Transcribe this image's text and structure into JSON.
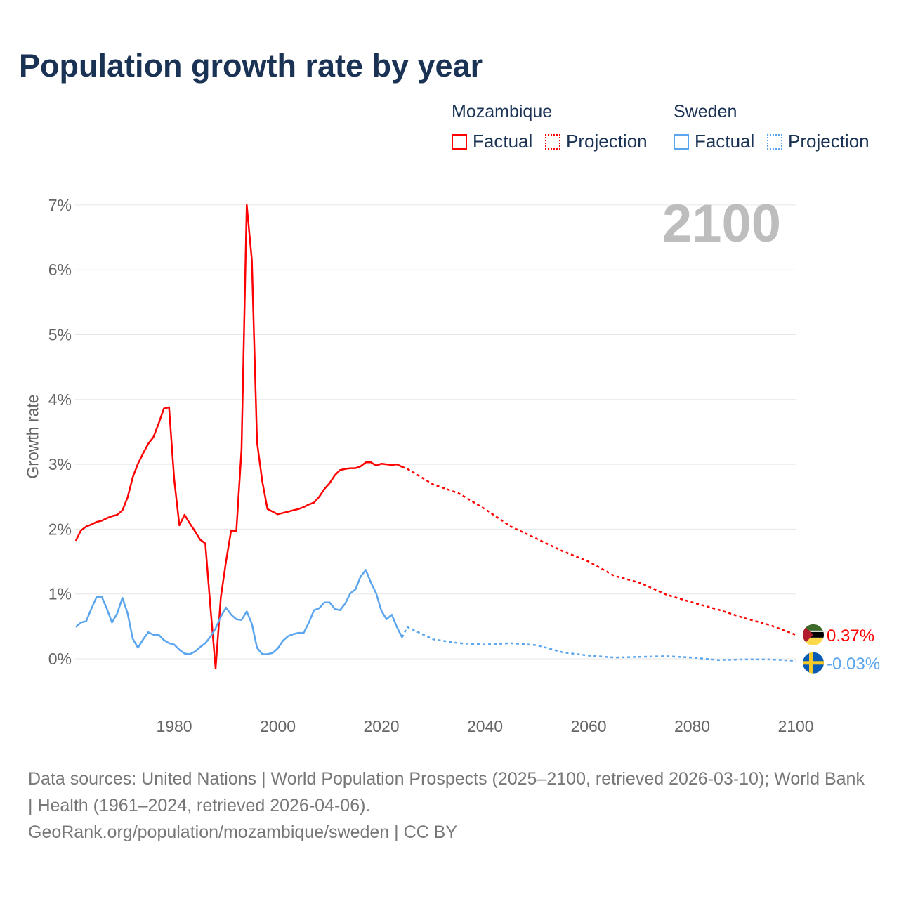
{
  "title": "Population growth rate by year",
  "current_year": "2100",
  "legend": {
    "groups": [
      {
        "name": "Mozambique",
        "color": "#ff0000",
        "factual": "Factual",
        "projection": "Projection"
      },
      {
        "name": "Sweden",
        "color": "#5aa5ee",
        "factual": "Factual",
        "projection": "Projection"
      }
    ]
  },
  "chart_data": {
    "type": "line",
    "title": "Population growth rate by year",
    "xlabel": "",
    "ylabel": "Growth rate",
    "xlim": [
      1961,
      2100
    ],
    "ylim": [
      -0.5,
      7.5
    ],
    "x_ticks": [
      1980,
      2000,
      2020,
      2040,
      2060,
      2080,
      2100
    ],
    "y_ticks": [
      0,
      1,
      2,
      3,
      4,
      5,
      6,
      7
    ],
    "y_tick_labels": [
      "0%",
      "1%",
      "2%",
      "3%",
      "4%",
      "5%",
      "6%",
      "7%"
    ],
    "grid": true,
    "series": [
      {
        "name": "Mozambique",
        "color": "#ff0000",
        "factual": {
          "start_year": 1961,
          "values": [
            1.82,
            1.98,
            2.04,
            2.07,
            2.11,
            2.13,
            2.17,
            2.2,
            2.22,
            2.29,
            2.49,
            2.8,
            3.01,
            3.17,
            3.32,
            3.42,
            3.63,
            3.86,
            3.88,
            2.77,
            2.06,
            2.22,
            2.09,
            1.97,
            1.84,
            1.78,
            0.8,
            -0.15,
            0.95,
            1.5,
            1.98,
            1.97,
            3.23,
            7.0,
            6.15,
            3.34,
            2.74,
            2.31,
            2.27,
            2.23,
            2.25,
            2.27,
            2.29,
            2.31,
            2.34,
            2.38,
            2.41,
            2.5,
            2.62,
            2.71,
            2.83,
            2.91,
            2.93,
            2.94,
            2.94,
            2.97,
            3.03,
            3.03,
            2.98,
            3.01,
            3.0,
            2.99,
            3.0,
            2.96
          ]
        },
        "projection": {
          "years": [
            2024,
            2025,
            2030,
            2035,
            2040,
            2045,
            2050,
            2055,
            2060,
            2065,
            2070,
            2075,
            2080,
            2085,
            2090,
            2095,
            2100
          ],
          "values": [
            2.96,
            2.93,
            2.69,
            2.55,
            2.31,
            2.04,
            1.85,
            1.66,
            1.5,
            1.28,
            1.17,
            0.99,
            0.87,
            0.76,
            0.63,
            0.52,
            0.37
          ]
        },
        "end_label": "0.37%"
      },
      {
        "name": "Sweden",
        "color": "#5aa5ee",
        "factual": {
          "start_year": 1961,
          "values": [
            0.49,
            0.56,
            0.58,
            0.77,
            0.95,
            0.96,
            0.77,
            0.56,
            0.7,
            0.94,
            0.7,
            0.31,
            0.17,
            0.3,
            0.41,
            0.37,
            0.37,
            0.29,
            0.24,
            0.22,
            0.14,
            0.08,
            0.07,
            0.11,
            0.18,
            0.24,
            0.34,
            0.47,
            0.65,
            0.79,
            0.68,
            0.61,
            0.6,
            0.73,
            0.54,
            0.17,
            0.07,
            0.07,
            0.09,
            0.16,
            0.28,
            0.35,
            0.38,
            0.4,
            0.4,
            0.56,
            0.75,
            0.78,
            0.87,
            0.87,
            0.77,
            0.75,
            0.85,
            1.01,
            1.07,
            1.27,
            1.37,
            1.17,
            1.01,
            0.74,
            0.61,
            0.68,
            0.49,
            0.33
          ]
        },
        "projection": {
          "years": [
            2024,
            2025,
            2030,
            2035,
            2040,
            2045,
            2050,
            2055,
            2060,
            2065,
            2070,
            2075,
            2080,
            2085,
            2090,
            2095,
            2100
          ],
          "values": [
            0.33,
            0.49,
            0.3,
            0.24,
            0.22,
            0.24,
            0.21,
            0.1,
            0.05,
            0.02,
            0.03,
            0.04,
            0.02,
            -0.02,
            -0.01,
            -0.01,
            -0.03
          ]
        },
        "end_label": "-0.03%"
      }
    ]
  },
  "sources": {
    "line1": "Data sources: United Nations | World Population Prospects (2025–2100, retrieved 2026-03-10); World Bank | Health (1961–2024, retrieved 2026-04-06).",
    "line2": "GeoRank.org/population/mozambique/sweden | CC BY"
  }
}
